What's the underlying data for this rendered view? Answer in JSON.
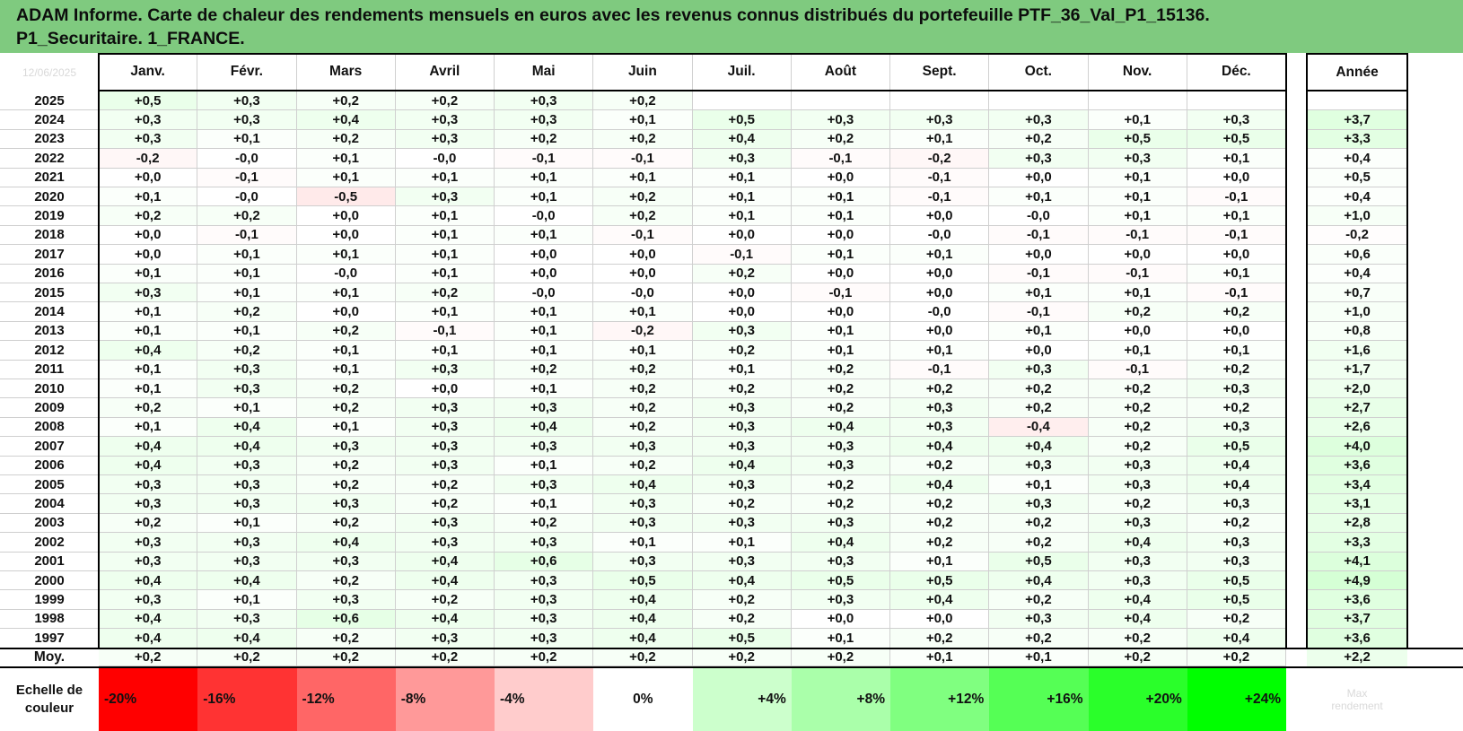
{
  "title": {
    "line1": "ADAM Informe. Carte de chaleur des rendements mensuels en euros avec les revenus connus distribués du portefeuille PTF_36_Val_P1_15136.",
    "line2": "P1_Securitaire. 1_FRANCE."
  },
  "corner_watermark": "12/06/2025",
  "months": [
    "Janv.",
    "Févr.",
    "Mars",
    "Avril",
    "Mai",
    "Juin",
    "Juil.",
    "Août",
    "Sept.",
    "Oct.",
    "Nov.",
    "Déc."
  ],
  "annual_header": "Année",
  "average_label": "Moy.",
  "scale_label_line1": "Echelle de",
  "scale_label_line2": "couleur",
  "scale_watermark_line1": "Max",
  "scale_watermark_line2": "rendement",
  "colors": {
    "title_bar": "#7fca7f",
    "neg_max": "#ff0000",
    "zero": "#ffffff",
    "pos_max": "#00ff00"
  },
  "chart_data": {
    "type": "heatmap",
    "unit": "%",
    "years": [
      "2025",
      "2024",
      "2023",
      "2022",
      "2021",
      "2020",
      "2019",
      "2018",
      "2017",
      "2016",
      "2015",
      "2014",
      "2013",
      "2012",
      "2011",
      "2010",
      "2009",
      "2008",
      "2007",
      "2006",
      "2005",
      "2004",
      "2003",
      "2002",
      "2001",
      "2000",
      "1999",
      "1998",
      "1997"
    ],
    "values": [
      [
        "+0,5",
        "+0,3",
        "+0,2",
        "+0,2",
        "+0,3",
        "+0,2",
        "",
        "",
        "",
        "",
        "",
        ""
      ],
      [
        "+0,3",
        "+0,3",
        "+0,4",
        "+0,3",
        "+0,3",
        "+0,1",
        "+0,5",
        "+0,3",
        "+0,3",
        "+0,3",
        "+0,1",
        "+0,3"
      ],
      [
        "+0,3",
        "+0,1",
        "+0,2",
        "+0,3",
        "+0,2",
        "+0,2",
        "+0,4",
        "+0,2",
        "+0,1",
        "+0,2",
        "+0,5",
        "+0,5"
      ],
      [
        "-0,2",
        "-0,0",
        "+0,1",
        "-0,0",
        "-0,1",
        "-0,1",
        "+0,3",
        "-0,1",
        "-0,2",
        "+0,3",
        "+0,3",
        "+0,1"
      ],
      [
        "+0,0",
        "-0,1",
        "+0,1",
        "+0,1",
        "+0,1",
        "+0,1",
        "+0,1",
        "+0,0",
        "-0,1",
        "+0,0",
        "+0,1",
        "+0,0"
      ],
      [
        "+0,1",
        "-0,0",
        "-0,5",
        "+0,3",
        "+0,1",
        "+0,2",
        "+0,1",
        "+0,1",
        "-0,1",
        "+0,1",
        "+0,1",
        "-0,1"
      ],
      [
        "+0,2",
        "+0,2",
        "+0,0",
        "+0,1",
        "-0,0",
        "+0,2",
        "+0,1",
        "+0,1",
        "+0,0",
        "-0,0",
        "+0,1",
        "+0,1"
      ],
      [
        "+0,0",
        "-0,1",
        "+0,0",
        "+0,1",
        "+0,1",
        "-0,1",
        "+0,0",
        "+0,0",
        "-0,0",
        "-0,1",
        "-0,1",
        "-0,1"
      ],
      [
        "+0,0",
        "+0,1",
        "+0,1",
        "+0,1",
        "+0,0",
        "+0,0",
        "-0,1",
        "+0,1",
        "+0,1",
        "+0,0",
        "+0,0",
        "+0,0"
      ],
      [
        "+0,1",
        "+0,1",
        "-0,0",
        "+0,1",
        "+0,0",
        "+0,0",
        "+0,2",
        "+0,0",
        "+0,0",
        "-0,1",
        "-0,1",
        "+0,1"
      ],
      [
        "+0,3",
        "+0,1",
        "+0,1",
        "+0,2",
        "-0,0",
        "-0,0",
        "+0,0",
        "-0,1",
        "+0,0",
        "+0,1",
        "+0,1",
        "-0,1"
      ],
      [
        "+0,1",
        "+0,2",
        "+0,0",
        "+0,1",
        "+0,1",
        "+0,1",
        "+0,0",
        "+0,0",
        "-0,0",
        "-0,1",
        "+0,2",
        "+0,2"
      ],
      [
        "+0,1",
        "+0,1",
        "+0,2",
        "-0,1",
        "+0,1",
        "-0,2",
        "+0,3",
        "+0,1",
        "+0,0",
        "+0,1",
        "+0,0",
        "+0,0"
      ],
      [
        "+0,4",
        "+0,2",
        "+0,1",
        "+0,1",
        "+0,1",
        "+0,1",
        "+0,2",
        "+0,1",
        "+0,1",
        "+0,0",
        "+0,1",
        "+0,1"
      ],
      [
        "+0,1",
        "+0,3",
        "+0,1",
        "+0,3",
        "+0,2",
        "+0,2",
        "+0,1",
        "+0,2",
        "-0,1",
        "+0,3",
        "-0,1",
        "+0,2"
      ],
      [
        "+0,1",
        "+0,3",
        "+0,2",
        "+0,0",
        "+0,1",
        "+0,2",
        "+0,2",
        "+0,2",
        "+0,2",
        "+0,2",
        "+0,2",
        "+0,3"
      ],
      [
        "+0,2",
        "+0,1",
        "+0,2",
        "+0,3",
        "+0,3",
        "+0,2",
        "+0,3",
        "+0,2",
        "+0,3",
        "+0,2",
        "+0,2",
        "+0,2"
      ],
      [
        "+0,1",
        "+0,4",
        "+0,1",
        "+0,3",
        "+0,4",
        "+0,2",
        "+0,3",
        "+0,4",
        "+0,3",
        "-0,4",
        "+0,2",
        "+0,3"
      ],
      [
        "+0,4",
        "+0,4",
        "+0,3",
        "+0,3",
        "+0,3",
        "+0,3",
        "+0,3",
        "+0,3",
        "+0,4",
        "+0,4",
        "+0,2",
        "+0,5"
      ],
      [
        "+0,4",
        "+0,3",
        "+0,2",
        "+0,3",
        "+0,1",
        "+0,2",
        "+0,4",
        "+0,3",
        "+0,2",
        "+0,3",
        "+0,3",
        "+0,4"
      ],
      [
        "+0,3",
        "+0,3",
        "+0,2",
        "+0,2",
        "+0,3",
        "+0,4",
        "+0,3",
        "+0,2",
        "+0,4",
        "+0,1",
        "+0,3",
        "+0,4"
      ],
      [
        "+0,3",
        "+0,3",
        "+0,3",
        "+0,2",
        "+0,1",
        "+0,3",
        "+0,2",
        "+0,2",
        "+0,2",
        "+0,3",
        "+0,2",
        "+0,3"
      ],
      [
        "+0,2",
        "+0,1",
        "+0,2",
        "+0,3",
        "+0,2",
        "+0,3",
        "+0,3",
        "+0,3",
        "+0,2",
        "+0,2",
        "+0,3",
        "+0,2"
      ],
      [
        "+0,3",
        "+0,3",
        "+0,4",
        "+0,3",
        "+0,3",
        "+0,1",
        "+0,1",
        "+0,4",
        "+0,2",
        "+0,2",
        "+0,4",
        "+0,3"
      ],
      [
        "+0,3",
        "+0,3",
        "+0,3",
        "+0,4",
        "+0,6",
        "+0,3",
        "+0,3",
        "+0,3",
        "+0,1",
        "+0,5",
        "+0,3",
        "+0,3"
      ],
      [
        "+0,4",
        "+0,4",
        "+0,2",
        "+0,4",
        "+0,3",
        "+0,5",
        "+0,4",
        "+0,5",
        "+0,5",
        "+0,4",
        "+0,3",
        "+0,5"
      ],
      [
        "+0,3",
        "+0,1",
        "+0,3",
        "+0,2",
        "+0,3",
        "+0,4",
        "+0,2",
        "+0,3",
        "+0,4",
        "+0,2",
        "+0,4",
        "+0,5"
      ],
      [
        "+0,4",
        "+0,3",
        "+0,6",
        "+0,4",
        "+0,3",
        "+0,4",
        "+0,2",
        "+0,0",
        "+0,0",
        "+0,3",
        "+0,4",
        "+0,2"
      ],
      [
        "+0,4",
        "+0,4",
        "+0,2",
        "+0,3",
        "+0,3",
        "+0,4",
        "+0,5",
        "+0,1",
        "+0,2",
        "+0,2",
        "+0,2",
        "+0,4"
      ]
    ],
    "annual": [
      "",
      "+3,7",
      "+3,3",
      "+0,4",
      "+0,5",
      "+0,4",
      "+1,0",
      "-0,2",
      "+0,6",
      "+0,4",
      "+0,7",
      "+1,0",
      "+0,8",
      "+1,6",
      "+1,7",
      "+2,0",
      "+2,7",
      "+2,6",
      "+4,0",
      "+3,6",
      "+3,4",
      "+3,1",
      "+2,8",
      "+3,3",
      "+4,1",
      "+4,9",
      "+3,6",
      "+3,7",
      "+3,6"
    ],
    "average_monthly": [
      "+0,2",
      "+0,2",
      "+0,2",
      "+0,2",
      "+0,2",
      "+0,2",
      "+0,2",
      "+0,2",
      "+0,1",
      "+0,1",
      "+0,2",
      "+0,2"
    ],
    "average_annual": "+2,2",
    "color_scale": {
      "labels": [
        "-20%",
        "-16%",
        "-12%",
        "-8%",
        "-4%",
        "0%",
        "+4%",
        "+8%",
        "+12%",
        "+16%",
        "+20%",
        "+24%"
      ],
      "values": [
        -20,
        -16,
        -12,
        -8,
        -4,
        0,
        4,
        8,
        12,
        16,
        20,
        24
      ]
    }
  }
}
